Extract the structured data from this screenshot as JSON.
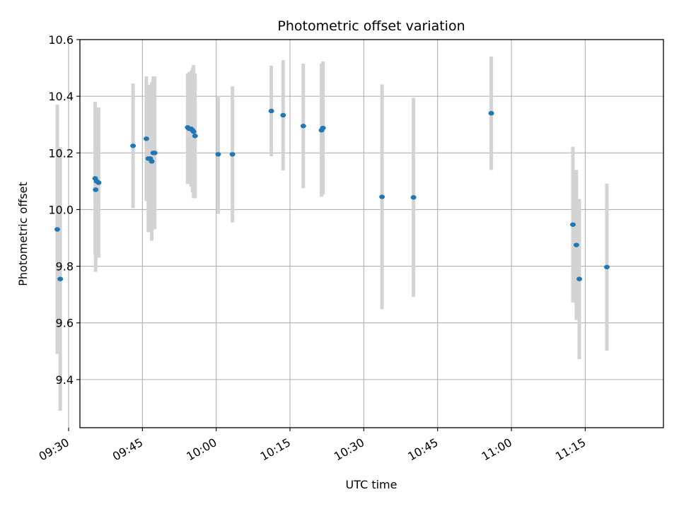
{
  "chart_data": {
    "type": "scatter",
    "title": "Photometric offset variation",
    "xlabel": "UTC time",
    "ylabel": "Photometric offset",
    "xlim_minutes": [
      572.3,
      690.9
    ],
    "ylim": [
      9.23,
      10.6
    ],
    "grid": true,
    "x_ticks": [
      {
        "minutes": 570,
        "label": "09:30"
      },
      {
        "minutes": 585,
        "label": "09:45"
      },
      {
        "minutes": 600,
        "label": "10:00"
      },
      {
        "minutes": 615,
        "label": "10:15"
      },
      {
        "minutes": 630,
        "label": "10:30"
      },
      {
        "minutes": 645,
        "label": "10:45"
      },
      {
        "minutes": 660,
        "label": "11:00"
      },
      {
        "minutes": 675,
        "label": "11:15"
      }
    ],
    "y_ticks": [
      {
        "value": 9.4,
        "label": "9.4"
      },
      {
        "value": 9.6,
        "label": "9.6"
      },
      {
        "value": 9.8,
        "label": "9.8"
      },
      {
        "value": 10.0,
        "label": "10.0"
      },
      {
        "value": 10.2,
        "label": "10.2"
      },
      {
        "value": 10.4,
        "label": "10.4"
      },
      {
        "value": 10.6,
        "label": "10.6"
      }
    ],
    "series": [
      {
        "name": "Photometric offset",
        "point_color": "#1f77b4",
        "errorbar_color": "#d3d3d3",
        "points": [
          {
            "t": 567.7,
            "y": 9.93,
            "lo": 9.49,
            "hi": 10.37
          },
          {
            "t": 568.3,
            "y": 9.755,
            "lo": 9.29,
            "hi": 10.22
          },
          {
            "t": 575.4,
            "y": 10.11,
            "lo": 9.84,
            "hi": 10.38
          },
          {
            "t": 575.5,
            "y": 10.07,
            "lo": 9.78,
            "hi": 10.36
          },
          {
            "t": 575.7,
            "y": 10.1,
            "lo": 9.84,
            "hi": 10.36
          },
          {
            "t": 576.1,
            "y": 10.095,
            "lo": 9.83,
            "hi": 10.36
          },
          {
            "t": 583.1,
            "y": 10.225,
            "lo": 10.005,
            "hi": 10.445
          },
          {
            "t": 585.8,
            "y": 10.25,
            "lo": 10.03,
            "hi": 10.47
          },
          {
            "t": 586.2,
            "y": 10.18,
            "lo": 9.92,
            "hi": 10.44
          },
          {
            "t": 586.6,
            "y": 10.18,
            "lo": 9.92,
            "hi": 10.44
          },
          {
            "t": 586.9,
            "y": 10.17,
            "lo": 9.89,
            "hi": 10.45
          },
          {
            "t": 587.2,
            "y": 10.2,
            "lo": 9.93,
            "hi": 10.47
          },
          {
            "t": 587.5,
            "y": 10.2,
            "lo": 9.93,
            "hi": 10.47
          },
          {
            "t": 594.2,
            "y": 10.29,
            "lo": 10.09,
            "hi": 10.48
          },
          {
            "t": 594.5,
            "y": 10.285,
            "lo": 10.09,
            "hi": 10.485
          },
          {
            "t": 594.9,
            "y": 10.285,
            "lo": 10.08,
            "hi": 10.49
          },
          {
            "t": 595.2,
            "y": 10.28,
            "lo": 10.06,
            "hi": 10.5
          },
          {
            "t": 595.4,
            "y": 10.275,
            "lo": 10.04,
            "hi": 10.51
          },
          {
            "t": 595.7,
            "y": 10.26,
            "lo": 10.04,
            "hi": 10.48
          },
          {
            "t": 600.4,
            "y": 10.195,
            "lo": 9.985,
            "hi": 10.4
          },
          {
            "t": 603.3,
            "y": 10.195,
            "lo": 9.955,
            "hi": 10.435
          },
          {
            "t": 611.2,
            "y": 10.348,
            "lo": 10.188,
            "hi": 10.508
          },
          {
            "t": 613.6,
            "y": 10.333,
            "lo": 10.138,
            "hi": 10.528
          },
          {
            "t": 617.7,
            "y": 10.295,
            "lo": 10.075,
            "hi": 10.515
          },
          {
            "t": 621.4,
            "y": 10.28,
            "lo": 10.045,
            "hi": 10.515
          },
          {
            "t": 621.7,
            "y": 10.288,
            "lo": 10.053,
            "hi": 10.523
          },
          {
            "t": 633.7,
            "y": 10.045,
            "lo": 9.648,
            "hi": 10.442
          },
          {
            "t": 640.1,
            "y": 10.043,
            "lo": 9.692,
            "hi": 10.394
          },
          {
            "t": 655.9,
            "y": 10.34,
            "lo": 10.14,
            "hi": 10.54
          },
          {
            "t": 672.5,
            "y": 9.947,
            "lo": 9.672,
            "hi": 10.222
          },
          {
            "t": 673.2,
            "y": 9.875,
            "lo": 9.61,
            "hi": 10.14
          },
          {
            "t": 673.8,
            "y": 9.755,
            "lo": 9.472,
            "hi": 10.038
          },
          {
            "t": 679.4,
            "y": 9.797,
            "lo": 9.502,
            "hi": 10.092
          }
        ]
      }
    ]
  }
}
